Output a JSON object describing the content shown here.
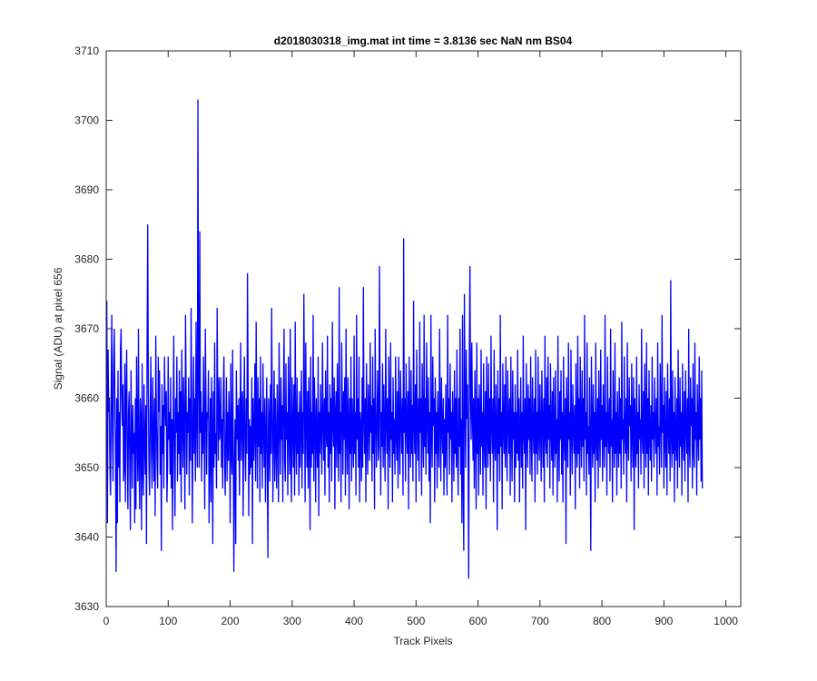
{
  "chart_data": {
    "type": "line",
    "title": "d2018030318_img.mat int time = 3.8136 sec  NaN nm BS04",
    "xlabel": "Track Pixels",
    "ylabel": "Signal (ADU) at pixel 656",
    "xlim": [
      0,
      1024
    ],
    "ylim": [
      3630,
      3710
    ],
    "xticks": [
      0,
      100,
      200,
      300,
      400,
      500,
      600,
      700,
      800,
      900,
      1000
    ],
    "yticks": [
      3630,
      3640,
      3650,
      3660,
      3670,
      3680,
      3690,
      3700,
      3710
    ],
    "grid": false,
    "legend": "none",
    "series_color": "#0000ff",
    "series": [
      {
        "x_start": 1,
        "x_step": 1,
        "values": [
          3674,
          3642,
          3667,
          3658,
          3660,
          3650,
          3646,
          3660,
          3672,
          3655,
          3648,
          3665,
          3670,
          3660,
          3653,
          3635,
          3660,
          3642,
          3664,
          3650,
          3658,
          3645,
          3667,
          3670,
          3660,
          3656,
          3662,
          3648,
          3650,
          3665,
          3645,
          3660,
          3667,
          3652,
          3644,
          3658,
          3661,
          3650,
          3641,
          3664,
          3656,
          3647,
          3659,
          3652,
          3655,
          3642,
          3660,
          3644,
          3666,
          3655,
          3648,
          3670,
          3651,
          3644,
          3660,
          3657,
          3641,
          3665,
          3650,
          3646,
          3662,
          3654,
          3649,
          3659,
          3639,
          3668,
          3685,
          3661,
          3650,
          3646,
          3658,
          3666,
          3652,
          3647,
          3663,
          3655,
          3648,
          3660,
          3643,
          3669,
          3657,
          3651,
          3647,
          3666,
          3658,
          3664,
          3649,
          3656,
          3638,
          3662,
          3652,
          3659,
          3647,
          3666,
          3660,
          3656,
          3661,
          3645,
          3650,
          3666,
          3654,
          3658,
          3649,
          3663,
          3647,
          3657,
          3641,
          3656,
          3669,
          3651,
          3643,
          3660,
          3655,
          3666,
          3648,
          3658,
          3652,
          3664,
          3649,
          3661,
          3645,
          3667,
          3657,
          3650,
          3663,
          3656,
          3644,
          3672,
          3661,
          3649,
          3658,
          3655,
          3663,
          3646,
          3660,
          3651,
          3673,
          3659,
          3642,
          3656,
          3666,
          3652,
          3660,
          3648,
          3671,
          3657,
          3650,
          3703,
          3664,
          3650,
          3684,
          3655,
          3661,
          3648,
          3658,
          3652,
          3666,
          3656,
          3644,
          3670,
          3660,
          3649,
          3658,
          3657,
          3664,
          3642,
          3652,
          3660,
          3645,
          3663,
          3655,
          3639,
          3661,
          3650,
          3668,
          3652,
          3655,
          3647,
          3673,
          3659,
          3651,
          3663,
          3654,
          3656,
          3663,
          3650,
          3657,
          3647,
          3661,
          3666,
          3652,
          3646,
          3655,
          3663,
          3648,
          3658,
          3651,
          3661,
          3656,
          3642,
          3665,
          3652,
          3649,
          3667,
          3654,
          3635,
          3650,
          3657,
          3639,
          3664,
          3654,
          3659,
          3651,
          3660,
          3646,
          3656,
          3668,
          3651,
          3659,
          3661,
          3643,
          3656,
          3666,
          3653,
          3648,
          3660,
          3652,
          3678,
          3662,
          3643,
          3657,
          3649,
          3656,
          3650,
          3663,
          3639,
          3660,
          3651,
          3655,
          3665,
          3648,
          3671,
          3656,
          3647,
          3663,
          3653,
          3660,
          3645,
          3666,
          3652,
          3658,
          3647,
          3665,
          3656,
          3650,
          3660,
          3645,
          3655,
          3663,
          3650,
          3637,
          3660,
          3657,
          3648,
          3662,
          3652,
          3673,
          3658,
          3645,
          3656,
          3664,
          3648,
          3660,
          3654,
          3647,
          3662,
          3655,
          3645,
          3668,
          3657,
          3649,
          3663,
          3654,
          3659,
          3645,
          3660,
          3670,
          3651,
          3648,
          3665,
          3654,
          3658,
          3646,
          3666,
          3656,
          3649,
          3670,
          3652,
          3645,
          3663,
          3656,
          3650,
          3662,
          3646,
          3671,
          3655,
          3649,
          3663,
          3652,
          3658,
          3646,
          3661,
          3650,
          3656,
          3664,
          3647,
          3658,
          3652,
          3675,
          3660,
          3645,
          3668,
          3656,
          3650,
          3661,
          3647,
          3663,
          3655,
          3641,
          3666,
          3650,
          3658,
          3652,
          3672,
          3648,
          3663,
          3657,
          3645,
          3660,
          3654,
          3650,
          3666,
          3643,
          3658,
          3652,
          3662,
          3655,
          3649,
          3668,
          3657,
          3651,
          3660,
          3646,
          3664,
          3655,
          3653,
          3669,
          3650,
          3658,
          3645,
          3662,
          3652,
          3660,
          3648,
          3671,
          3656,
          3653,
          3663,
          3644,
          3658,
          3661,
          3650,
          3665,
          3655,
          3648,
          3676,
          3652,
          3658,
          3645,
          3668,
          3659,
          3649,
          3661,
          3654,
          3663,
          3646,
          3670,
          3655,
          3649,
          3663,
          3657,
          3644,
          3660,
          3652,
          3666,
          3648,
          3660,
          3655,
          3650,
          3669,
          3652,
          3658,
          3646,
          3672,
          3654,
          3660,
          3650,
          3666,
          3645,
          3658,
          3656,
          3648,
          3663,
          3650,
          3676,
          3657,
          3652,
          3660,
          3645,
          3665,
          3655,
          3649,
          3662,
          3657,
          3651,
          3668,
          3655,
          3659,
          3648,
          3666,
          3652,
          3660,
          3644,
          3670,
          3658,
          3650,
          3657,
          3664,
          3651,
          3653,
          3679,
          3660,
          3646,
          3658,
          3653,
          3665,
          3650,
          3662,
          3655,
          3648,
          3670,
          3657,
          3652,
          3660,
          3644,
          3666,
          3656,
          3650,
          3668,
          3654,
          3658,
          3645,
          3663,
          3652,
          3657,
          3649,
          3666,
          3655,
          3651,
          3661,
          3647,
          3666,
          3656,
          3649,
          3664,
          3657,
          3652,
          3660,
          3646,
          3683,
          3655,
          3660,
          3648,
          3665,
          3656,
          3652,
          3661,
          3644,
          3666,
          3657,
          3650,
          3664,
          3652,
          3659,
          3648,
          3674,
          3656,
          3652,
          3662,
          3645,
          3667,
          3657,
          3651,
          3660,
          3648,
          3671,
          3655,
          3660,
          3646,
          3665,
          3656,
          3650,
          3672,
          3653,
          3660,
          3649,
          3668,
          3657,
          3652,
          3663,
          3648,
          3658,
          3642,
          3672,
          3655,
          3650,
          3666,
          3656,
          3660,
          3645,
          3663,
          3652,
          3658,
          3647,
          3661,
          3654,
          3650,
          3670,
          3657,
          3648,
          3663,
          3656,
          3652,
          3660,
          3646,
          3657,
          3650,
          3662,
          3654,
          3646,
          3672,
          3655,
          3660,
          3649,
          3665,
          3654,
          3658,
          3645,
          3661,
          3656,
          3648,
          3664,
          3652,
          3660,
          3650,
          3667,
          3652,
          3646,
          3660,
          3653,
          3670,
          3649,
          3657,
          3642,
          3672,
          3648,
          3638,
          3675,
          3660,
          3650,
          3667,
          3657,
          3662,
          3651,
          3634,
          3666,
          3679,
          3660,
          3654,
          3668,
          3658,
          3651,
          3660,
          3647,
          3664,
          3655,
          3644,
          3668,
          3652,
          3660,
          3646,
          3662,
          3656,
          3649,
          3667,
          3653,
          3658,
          3646,
          3665,
          3654,
          3650,
          3661,
          3644,
          3666,
          3656,
          3650,
          3665,
          3652,
          3660,
          3648,
          3669,
          3656,
          3652,
          3660,
          3645,
          3667,
          3654,
          3651,
          3662,
          3656,
          3641,
          3664,
          3652,
          3660,
          3648,
          3672,
          3653,
          3658,
          3644,
          3665,
          3656,
          3652,
          3662,
          3650,
          3666,
          3654,
          3648,
          3664,
          3657,
          3652,
          3660,
          3646,
          3666,
          3655,
          3648,
          3664,
          3654,
          3658,
          3645,
          3662,
          3650,
          3658,
          3652,
          3667,
          3651,
          3660,
          3645,
          3656,
          3663,
          3650,
          3658,
          3647,
          3669,
          3655,
          3652,
          3660,
          3641,
          3665,
          3656,
          3650,
          3662,
          3654,
          3660,
          3649,
          3666,
          3655,
          3648,
          3663,
          3656,
          3652,
          3660,
          3645,
          3667,
          3652,
          3658,
          3649,
          3666,
          3655,
          3651,
          3662,
          3656,
          3648,
          3664,
          3657,
          3650,
          3660,
          3645,
          3669,
          3655,
          3652,
          3663,
          3650,
          3666,
          3654,
          3659,
          3647,
          3665,
          3656,
          3651,
          3661,
          3646,
          3663,
          3655,
          3650,
          3664,
          3652,
          3657,
          3645,
          3669,
          3656,
          3648,
          3661,
          3654,
          3664,
          3649,
          3658,
          3645,
          3666,
          3654,
          3651,
          3660,
          3639,
          3663,
          3656,
          3650,
          3668,
          3654,
          3658,
          3646,
          3667,
          3655,
          3649,
          3662,
          3656,
          3652,
          3659,
          3644,
          3665,
          3654,
          3650,
          3669,
          3652,
          3660,
          3647,
          3666,
          3656,
          3650,
          3664,
          3653,
          3660,
          3648,
          3672,
          3654,
          3658,
          3646,
          3668,
          3652,
          3656,
          3649,
          3663,
          3654,
          3638,
          3666,
          3657,
          3650,
          3662,
          3652,
          3658,
          3645,
          3668,
          3654,
          3651,
          3660,
          3647,
          3664,
          3656,
          3650,
          3667,
          3654,
          3659,
          3648,
          3662,
          3655,
          3650,
          3672,
          3653,
          3658,
          3646,
          3666,
          3655,
          3652,
          3660,
          3648,
          3670,
          3653,
          3657,
          3645,
          3664,
          3656,
          3650,
          3668,
          3652,
          3658,
          3646,
          3661,
          3655,
          3650,
          3663,
          3652,
          3660,
          3647,
          3671,
          3654,
          3657,
          3649,
          3666,
          3655,
          3652,
          3660,
          3645,
          3668,
          3654,
          3651,
          3663,
          3656,
          3659,
          3648,
          3665,
          3655,
          3650,
          3663,
          3641,
          3660,
          3654,
          3650,
          3666,
          3652,
          3658,
          3647,
          3662,
          3654,
          3657,
          3649,
          3670,
          3655,
          3652,
          3661,
          3647,
          3665,
          3656,
          3650,
          3668,
          3652,
          3660,
          3646,
          3664,
          3655,
          3651,
          3659,
          3648,
          3666,
          3654,
          3658,
          3650,
          3663,
          3656,
          3652,
          3660,
          3646,
          3668,
          3653,
          3656,
          3649,
          3665,
          3657,
          3650,
          3672,
          3655,
          3659,
          3647,
          3663,
          3654,
          3650,
          3661,
          3646,
          3665,
          3656,
          3652,
          3660,
          3648,
          3677,
          3655,
          3650,
          3664,
          3652,
          3658,
          3645,
          3663,
          3654,
          3651,
          3660,
          3647,
          3667,
          3656,
          3650,
          3663,
          3653,
          3658,
          3646,
          3665,
          3655,
          3651,
          3661,
          3648,
          3664,
          3656,
          3652,
          3660,
          3645,
          3670,
          3654,
          3650,
          3663,
          3656,
          3660,
          3647,
          3665,
          3653,
          3650,
          3668,
          3654,
          3658,
          3646,
          3662,
          3656,
          3651,
          3666,
          3654,
          3660,
          3648,
          3664,
          3647
        ]
      }
    ]
  }
}
